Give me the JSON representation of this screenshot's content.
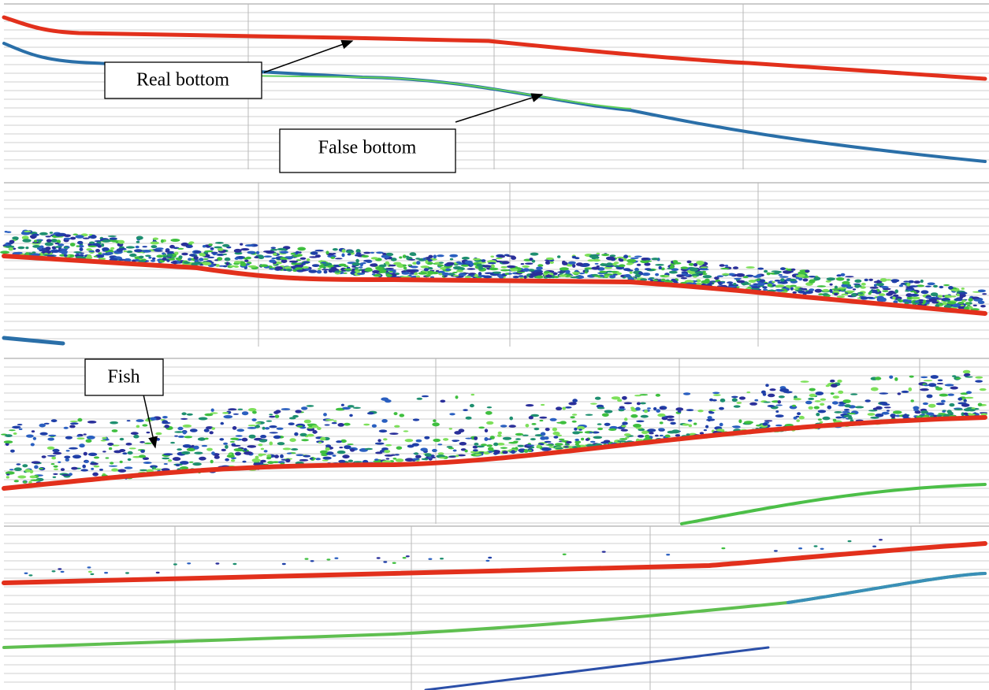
{
  "annotations": [
    {
      "label": "Real bottom"
    },
    {
      "label": "False bottom"
    },
    {
      "label": "Fish"
    }
  ]
}
